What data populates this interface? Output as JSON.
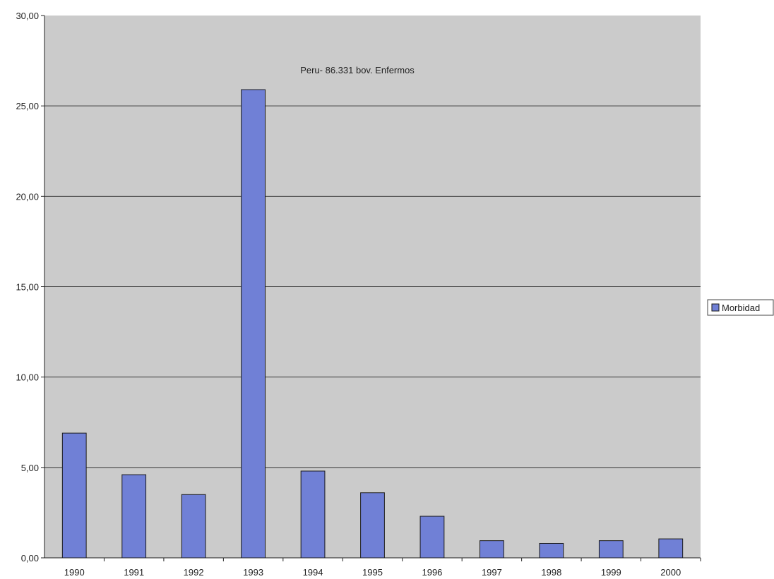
{
  "chart_data": {
    "type": "bar",
    "title": "Peru- 86.331 bov. Enfermos",
    "categories": [
      "1990",
      "1991",
      "1992",
      "1993",
      "1994",
      "1995",
      "1996",
      "1997",
      "1998",
      "1999",
      "2000"
    ],
    "series": [
      {
        "name": "Morbidad",
        "values": [
          6.9,
          4.6,
          3.5,
          25.9,
          4.8,
          3.6,
          2.3,
          0.95,
          0.8,
          0.95,
          1.05
        ]
      }
    ],
    "ylim": [
      0,
      30
    ],
    "yticks": [
      0,
      5,
      10,
      15,
      20,
      25,
      30
    ],
    "ytick_labels": [
      "0,00",
      "5,00",
      "10,00",
      "15,00",
      "20,00",
      "25,00",
      "30,00"
    ],
    "grid": true,
    "legend_position": "right"
  },
  "colors": {
    "plot_background": "#cbcbcb",
    "bar_fill": "#7080d6",
    "bar_stroke": "#1a1a1a",
    "gridline": "#3a3a3a"
  }
}
